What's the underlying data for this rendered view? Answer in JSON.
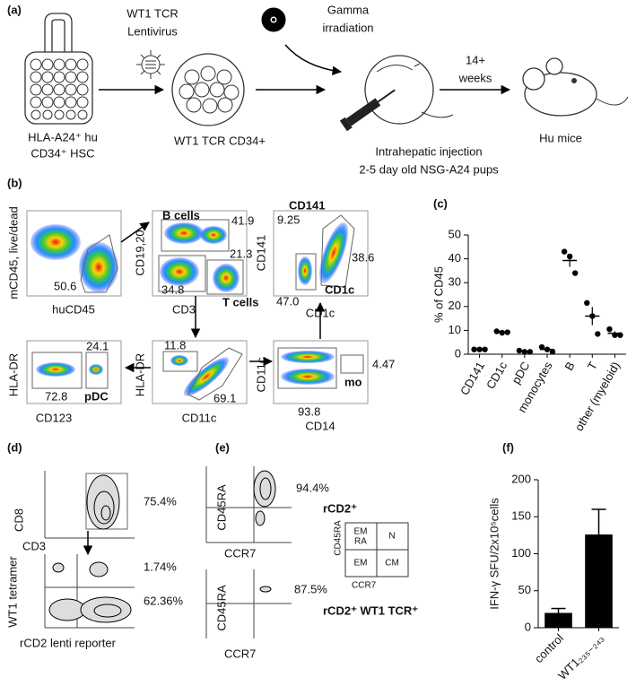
{
  "figure": {
    "a": {
      "label": "(a)",
      "vector": [
        "WT1 TCR",
        "Lentivirus"
      ],
      "irradiation": [
        "Gamma",
        "irradiation"
      ],
      "duration": [
        "14+",
        "weeks"
      ],
      "hsc": [
        "HLA-A24⁺ hu",
        "CD34⁺ HSC"
      ],
      "transduced": "WT1 TCR CD34+",
      "injection": [
        "Intrahepatic injection",
        "2-5 day old NSG-A24 pups"
      ],
      "mice": "Hu mice"
    },
    "b": {
      "label": "(b)",
      "plots": [
        {
          "y": "mCD45, live/dead",
          "x": "huCD45",
          "gates": [
            "50.6"
          ]
        },
        {
          "y": "CD19,20",
          "x": "CD3",
          "gates": [
            "B cells",
            "41.9",
            "21.3",
            "34.8",
            "T cells"
          ]
        },
        {
          "y": "CD141",
          "x": "CD1c",
          "gates": [
            "CD141",
            "9.25",
            "38.6",
            "47.0",
            "CD1c"
          ]
        },
        {
          "y": "HLA-DR",
          "x": "CD123",
          "gates": [
            "24.1",
            "72.8",
            "pDC"
          ]
        },
        {
          "y": "HLA-DR",
          "x": "CD11c",
          "gates": [
            "11.8",
            "69.1"
          ]
        },
        {
          "y": "CD11c",
          "x": "CD14",
          "gates": [
            "93.8",
            "mo",
            "4.47"
          ]
        }
      ]
    },
    "c": {
      "label": "(c)"
    },
    "d": {
      "label": "(d)",
      "top": {
        "y": "CD8",
        "x": "CD3",
        "gate": "75.4%"
      },
      "bottom": {
        "y": "WT1 tetramer",
        "x": "rCD2 lenti reporter",
        "gates": [
          "1.74%",
          "62.36%"
        ]
      }
    },
    "e": {
      "label": "(e)",
      "top": {
        "y": "CD45RA",
        "x": "CCR7",
        "gate": "94.4%",
        "population": "rCD2⁺"
      },
      "bottom": {
        "y": "CD45RA",
        "x": "CCR7",
        "gate": "87.5%",
        "population": "rCD2⁺ WT1 TCR⁺"
      },
      "key": {
        "emra": [
          "EM",
          "RA"
        ],
        "n": "N",
        "em": "EM",
        "cm": "CM",
        "y": "CD45RA",
        "x": "CCR7"
      }
    },
    "f": {
      "label": "(f)"
    }
  },
  "chart_data": [
    {
      "type": "dot_plot",
      "ylabel": "% of CD45",
      "categories": [
        "CD141",
        "CD1c",
        "pDC",
        "monocytes",
        "B",
        "T",
        "other (myeloid)"
      ],
      "points": [
        [
          2,
          2,
          2
        ],
        [
          9.6,
          9,
          9.2
        ],
        [
          1.5,
          1,
          1
        ],
        [
          3,
          2,
          1
        ],
        [
          43,
          41,
          34
        ],
        [
          21.5,
          16,
          8.5
        ],
        [
          10.5,
          8,
          8
        ]
      ],
      "means": [
        2,
        9.3,
        1.2,
        2,
        39.3,
        16,
        8.8
      ],
      "errors": [
        0.1,
        0.2,
        0.2,
        0.6,
        2.7,
        3.8,
        0.8
      ],
      "color": "#000000",
      "ylim": [
        0,
        50
      ],
      "yticks": [
        0,
        10,
        20,
        30,
        40,
        50
      ]
    },
    {
      "type": "bar",
      "ylabel": "IFN-γ SFU/2x10⁵cells",
      "categories": [
        "control",
        "WT1₂₃₅₋₂₄₃"
      ],
      "values": [
        20,
        126
      ],
      "errors": [
        6,
        34
      ],
      "color": "#000000",
      "ylim": [
        0,
        200
      ],
      "yticks": [
        0,
        50,
        100,
        150,
        200
      ]
    }
  ]
}
